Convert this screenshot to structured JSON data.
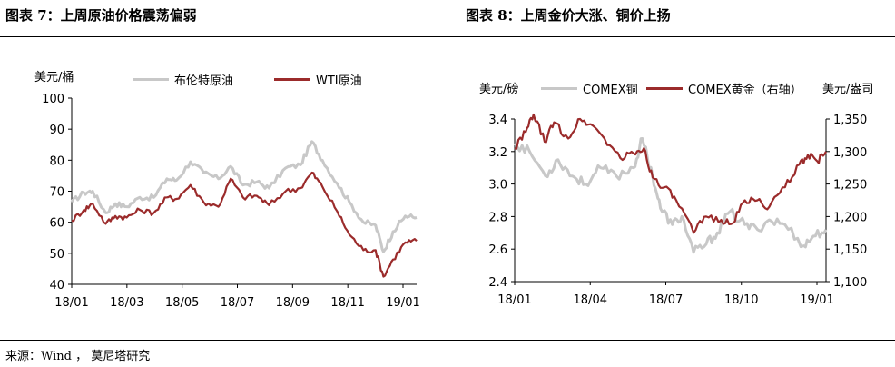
{
  "left_panel": {
    "title": "图表 7：上周原油价格震荡偏弱",
    "unit": "美元/桶",
    "chart_data": {
      "type": "line",
      "title": "图表 7：上周原油价格震荡偏弱",
      "ylabel": "美元/桶",
      "ylim": [
        40,
        100
      ],
      "yticks": [
        40,
        50,
        60,
        70,
        80,
        90,
        100
      ],
      "xticks": [
        "18/01",
        "18/03",
        "18/05",
        "18/07",
        "18/09",
        "18/11",
        "19/01"
      ],
      "grid": false,
      "legend": "top",
      "x_range": [
        "2018-01-01",
        "2019-01-31"
      ],
      "series": [
        {
          "name": "布伦特原油",
          "color": "#c8c8c8",
          "points": [
            [
              "2018-01-01",
              66.5
            ],
            [
              "2018-01-15",
              69.5
            ],
            [
              "2018-01-25",
              70
            ],
            [
              "2018-02-09",
              63
            ],
            [
              "2018-02-20",
              66
            ],
            [
              "2018-03-05",
              65
            ],
            [
              "2018-03-20",
              68
            ],
            [
              "2018-04-05",
              68
            ],
            [
              "2018-04-20",
              74
            ],
            [
              "2018-05-01",
              73.5
            ],
            [
              "2018-05-17",
              79.5
            ],
            [
              "2018-06-01",
              76
            ],
            [
              "2018-06-18",
              74
            ],
            [
              "2018-07-02",
              78
            ],
            [
              "2018-07-16",
              72
            ],
            [
              "2018-08-01",
              73
            ],
            [
              "2018-08-15",
              71
            ],
            [
              "2018-09-03",
              77.5
            ],
            [
              "2018-09-20",
              78.5
            ],
            [
              "2018-10-03",
              86
            ],
            [
              "2018-10-15",
              80
            ],
            [
              "2018-11-01",
              72.5
            ],
            [
              "2018-11-15",
              66.5
            ],
            [
              "2018-12-01",
              60
            ],
            [
              "2018-12-15",
              59
            ],
            [
              "2018-12-24",
              50.5
            ],
            [
              "2019-01-04",
              57
            ],
            [
              "2019-01-18",
              62
            ],
            [
              "2019-01-31",
              61.5
            ]
          ]
        },
        {
          "name": "WTI原油",
          "color": "#9b2b2b",
          "points": [
            [
              "2018-01-01",
              60.5
            ],
            [
              "2018-01-15",
              64
            ],
            [
              "2018-01-25",
              66
            ],
            [
              "2018-02-09",
              59.5
            ],
            [
              "2018-02-20",
              62
            ],
            [
              "2018-03-05",
              61.5
            ],
            [
              "2018-03-20",
              64
            ],
            [
              "2018-04-05",
              63
            ],
            [
              "2018-04-20",
              68
            ],
            [
              "2018-05-01",
              67.5
            ],
            [
              "2018-05-17",
              72
            ],
            [
              "2018-06-01",
              66.5
            ],
            [
              "2018-06-18",
              65
            ],
            [
              "2018-07-02",
              74
            ],
            [
              "2018-07-16",
              68
            ],
            [
              "2018-08-01",
              68.5
            ],
            [
              "2018-08-15",
              65.5
            ],
            [
              "2018-09-03",
              70
            ],
            [
              "2018-09-20",
              71
            ],
            [
              "2018-10-03",
              76
            ],
            [
              "2018-10-15",
              71.5
            ],
            [
              "2018-11-01",
              63.5
            ],
            [
              "2018-11-15",
              56
            ],
            [
              "2018-12-01",
              51
            ],
            [
              "2018-12-15",
              51
            ],
            [
              "2018-12-24",
              42.5
            ],
            [
              "2019-01-04",
              48
            ],
            [
              "2019-01-18",
              53.5
            ],
            [
              "2019-01-31",
              54
            ]
          ]
        }
      ]
    }
  },
  "right_panel": {
    "title": "图表 8：上周金价大涨、铜价上扬",
    "unit_left": "美元/磅",
    "unit_right": "美元/盎司",
    "chart_data": {
      "type": "line",
      "title": "图表 8：上周金价大涨、铜价上扬",
      "ylabel": "美元/磅",
      "y2label": "美元/盎司",
      "ylim": [
        2.4,
        3.4
      ],
      "yticks": [
        "2.4",
        "2.6",
        "2.8",
        "3.0",
        "3.2",
        "3.4"
      ],
      "y2lim": [
        1100,
        1350
      ],
      "y2ticks": [
        "1,100",
        "1,150",
        "1,200",
        "1,250",
        "1,300",
        "1,350"
      ],
      "xticks": [
        "18/01",
        "18/04",
        "18/07",
        "18/10",
        "19/01"
      ],
      "grid": false,
      "legend": "top",
      "x_range": [
        "2018-01-01",
        "2019-01-31"
      ],
      "series": [
        {
          "name": "COMEX铜",
          "axis": "left",
          "color": "#c8c8c8",
          "points": [
            [
              "2018-01-01",
              3.25
            ],
            [
              "2018-01-20",
              3.2
            ],
            [
              "2018-02-09",
              3.05
            ],
            [
              "2018-02-25",
              3.15
            ],
            [
              "2018-03-15",
              3.05
            ],
            [
              "2018-04-01",
              3.0
            ],
            [
              "2018-04-20",
              3.1
            ],
            [
              "2018-05-10",
              3.05
            ],
            [
              "2018-06-01",
              3.1
            ],
            [
              "2018-06-12",
              3.28
            ],
            [
              "2018-06-25",
              3.05
            ],
            [
              "2018-07-05",
              2.85
            ],
            [
              "2018-07-20",
              2.75
            ],
            [
              "2018-08-01",
              2.8
            ],
            [
              "2018-08-16",
              2.58
            ],
            [
              "2018-09-01",
              2.63
            ],
            [
              "2018-09-15",
              2.7
            ],
            [
              "2018-10-01",
              2.83
            ],
            [
              "2018-10-20",
              2.75
            ],
            [
              "2018-11-05",
              2.72
            ],
            [
              "2018-11-20",
              2.78
            ],
            [
              "2018-12-10",
              2.75
            ],
            [
              "2019-01-03",
              2.62
            ],
            [
              "2019-01-15",
              2.68
            ],
            [
              "2019-01-31",
              2.72
            ]
          ]
        },
        {
          "name": "COMEX黄金（右轴）",
          "axis": "right",
          "color": "#9b2b2b",
          "points": [
            [
              "2018-01-01",
              1305
            ],
            [
              "2018-01-15",
              1330
            ],
            [
              "2018-01-25",
              1357
            ],
            [
              "2018-02-08",
              1315
            ],
            [
              "2018-02-20",
              1345
            ],
            [
              "2018-03-10",
              1320
            ],
            [
              "2018-03-25",
              1350
            ],
            [
              "2018-04-10",
              1340
            ],
            [
              "2018-04-25",
              1320
            ],
            [
              "2018-05-15",
              1290
            ],
            [
              "2018-06-01",
              1297
            ],
            [
              "2018-06-14",
              1305
            ],
            [
              "2018-06-25",
              1260
            ],
            [
              "2018-07-10",
              1245
            ],
            [
              "2018-07-25",
              1225
            ],
            [
              "2018-08-16",
              1175
            ],
            [
              "2018-09-01",
              1200
            ],
            [
              "2018-09-20",
              1195
            ],
            [
              "2018-10-05",
              1190
            ],
            [
              "2018-10-20",
              1225
            ],
            [
              "2018-11-05",
              1225
            ],
            [
              "2018-11-20",
              1215
            ],
            [
              "2018-12-10",
              1245
            ],
            [
              "2018-12-28",
              1280
            ],
            [
              "2019-01-08",
              1295
            ],
            [
              "2019-01-20",
              1285
            ],
            [
              "2019-01-31",
              1300
            ]
          ]
        }
      ]
    }
  },
  "source": "来源：Wind ， 莫尼塔研究"
}
